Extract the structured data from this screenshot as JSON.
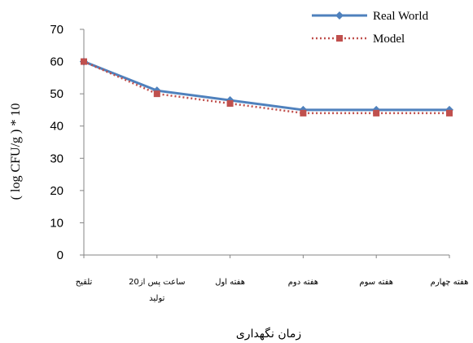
{
  "chart_data": {
    "type": "line",
    "categories": [
      [
        "تلقیح"
      ],
      [
        "20ساعت پس از",
        "تولید"
      ],
      [
        "هفته اول"
      ],
      [
        "هفته دوم"
      ],
      [
        "هفته سوم"
      ],
      [
        "هفته چهارم"
      ]
    ],
    "series": [
      {
        "name": "Real World",
        "values": [
          60,
          51,
          48,
          45,
          45,
          45
        ],
        "color": "#4F81BD",
        "marker": "diamond",
        "line": "solid"
      },
      {
        "name": "Model",
        "values": [
          60,
          50,
          47,
          44,
          44,
          44
        ],
        "color": "#C0504D",
        "marker": "square",
        "line": "dotted"
      }
    ],
    "ylim": [
      0,
      70
    ],
    "yticks": [
      0,
      10,
      20,
      30,
      40,
      50,
      60,
      70
    ],
    "xlabel": "زمان نگهداری",
    "ylabel": "( log   CFU/g  )  *  10",
    "legend": "top-right",
    "grid": false
  }
}
